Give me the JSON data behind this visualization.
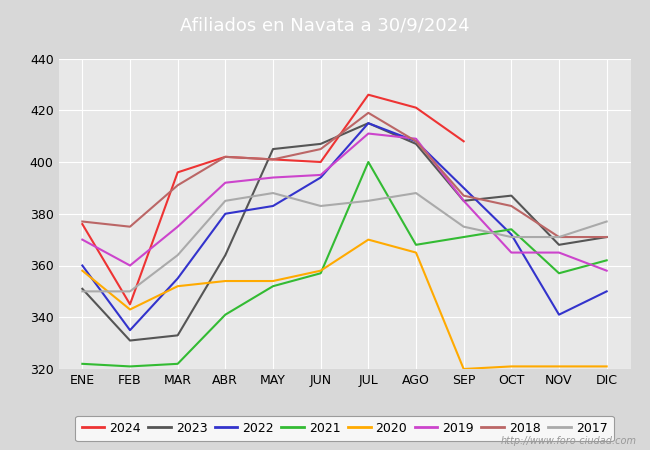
{
  "title": "Afiliados en Navata a 30/9/2024",
  "months": [
    "ENE",
    "FEB",
    "MAR",
    "ABR",
    "MAY",
    "JUN",
    "JUL",
    "AGO",
    "SEP",
    "OCT",
    "NOV",
    "DIC"
  ],
  "ylim": [
    320,
    440
  ],
  "yticks": [
    320,
    340,
    360,
    380,
    400,
    420,
    440
  ],
  "series": {
    "2024": {
      "color": "#ee3333",
      "data": [
        376,
        345,
        396,
        402,
        401,
        400,
        426,
        421,
        408,
        null,
        null,
        null
      ]
    },
    "2023": {
      "color": "#555555",
      "data": [
        351,
        331,
        333,
        364,
        405,
        407,
        415,
        407,
        385,
        387,
        368,
        371
      ]
    },
    "2022": {
      "color": "#3333cc",
      "data": [
        360,
        335,
        355,
        380,
        383,
        394,
        415,
        408,
        390,
        372,
        341,
        350
      ]
    },
    "2021": {
      "color": "#33bb33",
      "data": [
        322,
        321,
        322,
        341,
        352,
        357,
        400,
        368,
        371,
        374,
        357,
        362
      ]
    },
    "2020": {
      "color": "#ffaa00",
      "data": [
        358,
        343,
        352,
        354,
        354,
        358,
        370,
        365,
        320,
        321,
        321,
        321
      ]
    },
    "2019": {
      "color": "#cc44cc",
      "data": [
        370,
        360,
        375,
        392,
        394,
        395,
        411,
        409,
        385,
        365,
        365,
        358
      ]
    },
    "2018": {
      "color": "#bb6666",
      "data": [
        377,
        375,
        391,
        402,
        401,
        405,
        419,
        408,
        387,
        383,
        371,
        371
      ]
    },
    "2017": {
      "color": "#aaaaaa",
      "data": [
        350,
        350,
        364,
        385,
        388,
        383,
        385,
        388,
        375,
        371,
        371,
        377
      ]
    }
  },
  "legend_order": [
    "2024",
    "2023",
    "2022",
    "2021",
    "2020",
    "2019",
    "2018",
    "2017"
  ],
  "title_bg_color": "#4f86c6",
  "outer_bg_color": "#d8d8d8",
  "plot_bg_color": "#e8e8e8",
  "grid_color": "#ffffff",
  "watermark": "http://www.foro-ciudad.com",
  "title_fontsize": 13,
  "tick_fontsize": 9,
  "legend_fontsize": 9,
  "linewidth": 1.5
}
